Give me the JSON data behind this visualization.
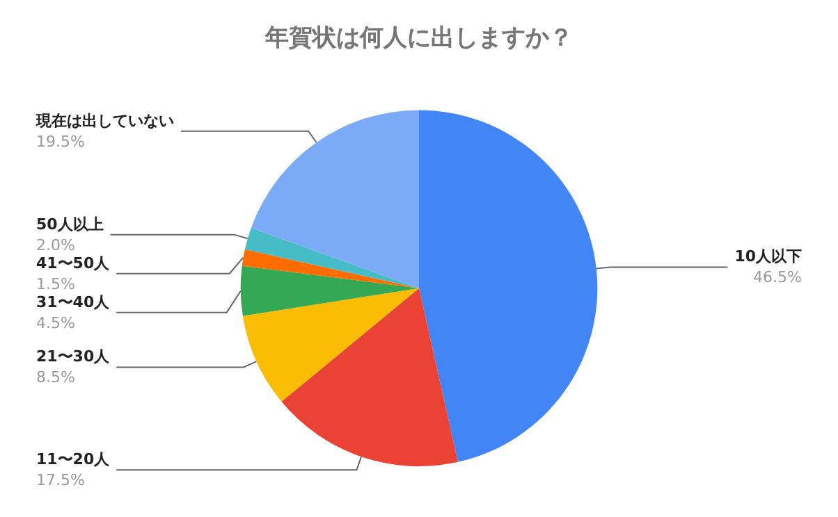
{
  "chart_data": {
    "type": "pie",
    "title": "年賀状は何人に出しますか？",
    "categories": [
      "10人以下",
      "11〜20人",
      "21〜30人",
      "31〜40人",
      "41〜50人",
      "50人以上",
      "現在は出していない"
    ],
    "values": [
      46.5,
      17.5,
      8.5,
      4.5,
      1.5,
      2.0,
      19.5
    ],
    "value_labels": [
      "46.5%",
      "17.5%",
      "8.5%",
      "4.5%",
      "1.5%",
      "2.0%",
      "19.5%"
    ],
    "colors": [
      "#4285f4",
      "#ea4335",
      "#fbbc04",
      "#34a853",
      "#ff6d01",
      "#46bdc6",
      "#7baaf7"
    ],
    "legend": false
  }
}
